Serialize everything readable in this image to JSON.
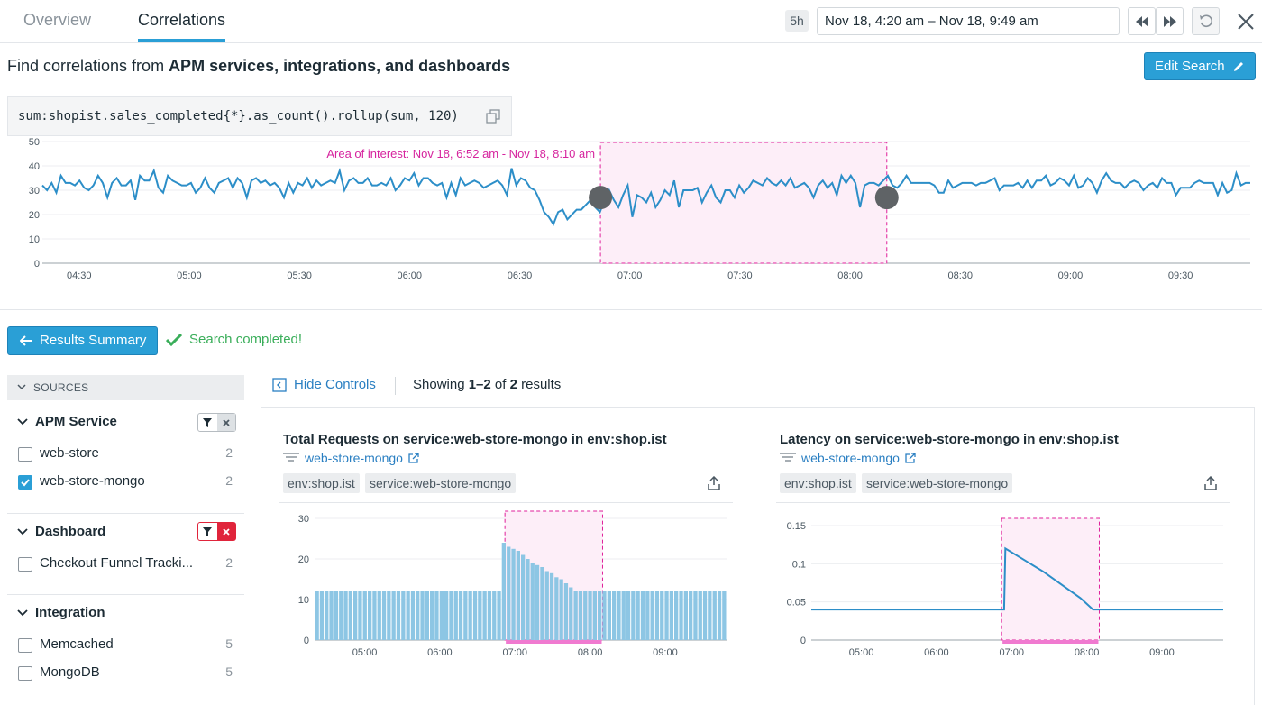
{
  "tabs": [
    {
      "label": "Overview",
      "active": false
    },
    {
      "label": "Correlations",
      "active": true
    }
  ],
  "time_range": {
    "badge": "5h",
    "value": "Nov 18, 4:20 am – Nov 18, 9:49 am"
  },
  "heading": {
    "prefix": "Find correlations from ",
    "bold": "APM services, integrations, and dashboards"
  },
  "edit_search_label": "Edit Search",
  "query": "sum:shopist.sales_completed{*}.as_count().rollup(sum, 120)",
  "main_chart": {
    "annotation": "Area of interest: Nov 18, 6:52 am - Nov 18, 8:10 am",
    "y_ticks": [
      "50",
      "40",
      "30",
      "20",
      "10",
      "0"
    ],
    "x_ticks": [
      "04:30",
      "05:00",
      "05:30",
      "06:00",
      "06:30",
      "07:00",
      "07:30",
      "08:00",
      "08:30",
      "09:00",
      "09:30"
    ]
  },
  "results_summary_label": "Results Summary",
  "search_status": "Search completed!",
  "sources": {
    "header": "SOURCES",
    "facets": [
      {
        "title": "APM Service",
        "items": [
          {
            "label": "web-store",
            "count": "2",
            "checked": false
          },
          {
            "label": "web-store-mongo",
            "count": "2",
            "checked": true
          }
        ]
      },
      {
        "title": "Dashboard",
        "items": [
          {
            "label": "Checkout Funnel Tracki...",
            "count": "2",
            "checked": false
          }
        ]
      },
      {
        "title": "Integration",
        "items": [
          {
            "label": "Memcached",
            "count": "5",
            "checked": false
          },
          {
            "label": "MongoDB",
            "count": "5",
            "checked": false
          }
        ]
      }
    ]
  },
  "hide_controls_label": "Hide Controls",
  "showing": {
    "prefix": "Showing ",
    "range": "1–2",
    "mid": " of ",
    "total": "2",
    "suffix": " results"
  },
  "cards": [
    {
      "title": "Total Requests on service:web-store-mongo in env:shop.ist",
      "link": "web-store-mongo",
      "tags": [
        "env:shop.ist",
        "service:web-store-mongo"
      ],
      "y_ticks": [
        "30",
        "20",
        "10",
        "0"
      ],
      "x_ticks": [
        "05:00",
        "06:00",
        "07:00",
        "08:00",
        "09:00"
      ]
    },
    {
      "title": "Latency on service:web-store-mongo in env:shop.ist",
      "link": "web-store-mongo",
      "tags": [
        "env:shop.ist",
        "service:web-store-mongo"
      ],
      "y_ticks": [
        "0.15",
        "0.1",
        "0.05",
        "0"
      ],
      "x_ticks": [
        "05:00",
        "06:00",
        "07:00",
        "08:00",
        "09:00"
      ]
    }
  ],
  "chart_data": [
    {
      "type": "line",
      "title": "",
      "ylim": [
        0,
        50
      ],
      "x_range": [
        "04:20",
        "09:49"
      ],
      "highlight": [
        "06:52",
        "08:10"
      ],
      "values": [
        32,
        30,
        33,
        29,
        36,
        33,
        33,
        32,
        34,
        31,
        30,
        32,
        36,
        33,
        27,
        33,
        35,
        32,
        32,
        34,
        26,
        36,
        34,
        34,
        38,
        31,
        29,
        36,
        34,
        33,
        32,
        32,
        33,
        29,
        31,
        35,
        31,
        29,
        33,
        34,
        35,
        31,
        35,
        33,
        27,
        34,
        35,
        33,
        34,
        32,
        33,
        31,
        27,
        33,
        29,
        33,
        32,
        35,
        31,
        34,
        32,
        33,
        34,
        33,
        38,
        30,
        34,
        35,
        33,
        33,
        35,
        32,
        32,
        33,
        32,
        35,
        30,
        32,
        35,
        34,
        37,
        32,
        35,
        35,
        33,
        32,
        33,
        27,
        33,
        28,
        35,
        32,
        33,
        34,
        33,
        31,
        32,
        33,
        34,
        32,
        28,
        39,
        32,
        35,
        34,
        31,
        30,
        26,
        21,
        19,
        16,
        21,
        22,
        18,
        20,
        22,
        22,
        24,
        26,
        23,
        21,
        26,
        30,
        26,
        23,
        28,
        32,
        19,
        28,
        27,
        25,
        29,
        23,
        26,
        30,
        28,
        34,
        23,
        30,
        30,
        30,
        31,
        25,
        29,
        32,
        27,
        25,
        30,
        30,
        27,
        32,
        29,
        31,
        34,
        33,
        32,
        35,
        33,
        32,
        34,
        32,
        35,
        31,
        32,
        33,
        31,
        27,
        32,
        34,
        31,
        33,
        28,
        36,
        33,
        36,
        33,
        23,
        32,
        33,
        33,
        32,
        34,
        36,
        32,
        31,
        33,
        36,
        33,
        33,
        33,
        33,
        33,
        32,
        29,
        29,
        34,
        31,
        32,
        33,
        33,
        33,
        32,
        33,
        33,
        34,
        35,
        30,
        32,
        32,
        32,
        33,
        31,
        34,
        31,
        34,
        34,
        36,
        32,
        33,
        35,
        34,
        32,
        36,
        31,
        32,
        35,
        33,
        29,
        34,
        37,
        34,
        33,
        33,
        31,
        33,
        34,
        33,
        30,
        32,
        33,
        31,
        35,
        33,
        33,
        28,
        31,
        31,
        31,
        33,
        34,
        33,
        33,
        33,
        28,
        33,
        29,
        30,
        37,
        32,
        33,
        33
      ]
    },
    {
      "type": "bar",
      "title": "Total Requests on service:web-store-mongo in env:shop.ist",
      "ylim": [
        0,
        30
      ],
      "x_range": [
        "04:20",
        "09:49"
      ],
      "highlight": [
        "06:52",
        "08:10"
      ],
      "values": [
        12,
        12,
        12,
        12,
        12,
        12,
        12,
        12,
        12,
        12,
        12,
        12,
        12,
        12,
        12,
        12,
        12,
        12,
        12,
        12,
        12,
        12,
        12,
        12,
        12,
        12,
        12,
        12,
        12,
        12,
        12,
        12,
        12,
        12,
        12,
        12,
        12,
        12,
        12,
        24,
        23,
        22.5,
        22,
        21,
        20,
        19,
        18.5,
        18,
        17,
        16.5,
        15.5,
        15,
        14,
        13,
        12,
        12,
        12,
        12,
        12,
        12,
        12,
        12,
        12,
        12,
        12,
        12,
        12,
        12,
        12,
        12,
        12,
        12,
        12,
        12,
        12,
        12,
        12,
        12,
        12,
        12,
        12,
        12,
        12,
        12,
        12,
        12
      ]
    },
    {
      "type": "line",
      "title": "Latency on service:web-store-mongo in env:shop.ist",
      "ylim": [
        0,
        0.15
      ],
      "x_range": [
        "04:20",
        "09:49"
      ],
      "highlight": [
        "06:52",
        "08:10"
      ],
      "points": [
        [
          "04:20",
          0.04
        ],
        [
          "06:54",
          0.04
        ],
        [
          "06:55",
          0.12
        ],
        [
          "07:25",
          0.09
        ],
        [
          "07:55",
          0.055
        ],
        [
          "08:05",
          0.04
        ],
        [
          "09:49",
          0.04
        ]
      ]
    }
  ]
}
